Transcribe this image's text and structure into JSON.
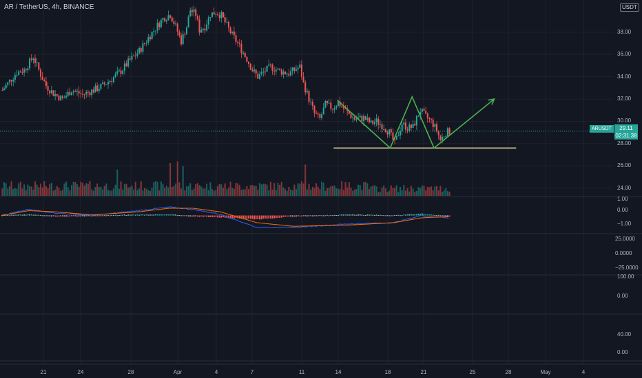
{
  "header": {
    "title": "AR / TetherUS, 4h, BINANCE"
  },
  "currency_label": "USDT",
  "ticker_label": "ARUSDT",
  "last_price": {
    "value": "29.11",
    "countdown": "02:31:38"
  },
  "colors": {
    "background": "#131722",
    "up": "#26a69a",
    "down": "#ef5350",
    "macd": "#2962ff",
    "signal": "#ff6d00",
    "pattern": "#4caf50",
    "support": "#f0e6a0"
  },
  "x_labels": [
    "21",
    "24",
    "28",
    "Apr",
    "4",
    "7",
    "11",
    "14",
    "18",
    "21",
    "25",
    "28",
    "May",
    "4"
  ],
  "price_axis_labels": [
    "38.00",
    "36.00",
    "34.00",
    "32.00",
    "30.00",
    "28.00",
    "26.00",
    "24.00"
  ],
  "macd_axis_labels": [
    "1.00",
    "0.00",
    "−1.00"
  ],
  "pane3_axis_labels": [
    "25.0000",
    "0.0000",
    "−25.0000"
  ],
  "pane4_axis_labels": [
    "100.00",
    "0.00"
  ],
  "pane5_axis_labels": [
    "40.00",
    "0.00"
  ],
  "chart_data": {
    "type": "candlestick",
    "title": "AR / TetherUS, 4h, BINANCE",
    "ylabel": "USDT",
    "ylim": [
      23.3,
      40.4
    ],
    "x_ticks": [
      "21",
      "24",
      "28",
      "Apr",
      "4",
      "7",
      "11",
      "14",
      "18",
      "21"
    ],
    "last_price": 29.11,
    "close_path_anchors": [
      [
        0,
        32.8
      ],
      [
        4,
        33.6
      ],
      [
        8,
        34.4
      ],
      [
        12,
        34.6
      ],
      [
        17,
        35.8
      ],
      [
        21,
        34.2
      ],
      [
        24,
        33.2
      ],
      [
        28,
        32.5
      ],
      [
        33,
        32.0
      ],
      [
        38,
        32.8
      ],
      [
        44,
        32.4
      ],
      [
        50,
        32.8
      ],
      [
        55,
        33.2
      ],
      [
        60,
        33.8
      ],
      [
        65,
        34.5
      ],
      [
        70,
        35.5
      ],
      [
        75,
        36.3
      ],
      [
        80,
        37.5
      ],
      [
        85,
        38.6
      ],
      [
        88,
        39.2
      ],
      [
        92,
        39.6
      ],
      [
        95,
        38.5
      ],
      [
        98,
        37.2
      ],
      [
        101,
        38.5
      ],
      [
        103,
        40.0
      ],
      [
        106,
        39.6
      ],
      [
        108,
        38.2
      ],
      [
        111,
        38.5
      ],
      [
        114,
        39.6
      ],
      [
        117,
        39.8
      ],
      [
        120,
        39.5
      ],
      [
        125,
        38.0
      ],
      [
        129,
        37.0
      ],
      [
        134,
        35.6
      ],
      [
        137,
        34.6
      ],
      [
        140,
        34.0
      ],
      [
        143,
        34.4
      ],
      [
        147,
        34.9
      ],
      [
        152,
        34.5
      ],
      [
        157,
        34.3
      ],
      [
        163,
        34.9
      ],
      [
        165,
        33.4
      ],
      [
        168,
        32.0
      ],
      [
        171,
        30.7
      ],
      [
        174,
        30.2
      ],
      [
        177,
        31.5
      ],
      [
        181,
        31.2
      ],
      [
        184,
        31.7
      ],
      [
        189,
        30.8
      ],
      [
        193,
        30.2
      ],
      [
        198,
        30.3
      ],
      [
        202,
        29.8
      ],
      [
        205,
        30.0
      ],
      [
        209,
        29.5
      ],
      [
        212,
        29.0
      ],
      [
        215,
        28.0
      ],
      [
        219,
        29.8
      ],
      [
        222,
        29.4
      ],
      [
        225,
        29.5
      ],
      [
        229,
        31.0
      ],
      [
        232,
        30.4
      ],
      [
        235,
        30.0
      ],
      [
        238,
        29.2
      ],
      [
        240,
        28.3
      ],
      [
        243,
        29.0
      ],
      [
        245,
        29.1
      ]
    ],
    "volume_axis": "overlay, bottom of price pane",
    "volume_peaks": [
      [
        63,
        3.2
      ],
      [
        92,
        4.0
      ],
      [
        96,
        4.2
      ],
      [
        99,
        3.6
      ],
      [
        166,
        3.8
      ]
    ],
    "macd": {
      "ylim": [
        -1.4,
        1.4
      ],
      "macd_anchors": [
        [
          0,
          0.0
        ],
        [
          15,
          0.5
        ],
        [
          30,
          0.2
        ],
        [
          50,
          0.0
        ],
        [
          75,
          0.4
        ],
        [
          92,
          0.7
        ],
        [
          105,
          0.5
        ],
        [
          120,
          0.1
        ],
        [
          140,
          -1.0
        ],
        [
          160,
          -1.0
        ],
        [
          190,
          -0.7
        ],
        [
          215,
          -0.6
        ],
        [
          230,
          0.0
        ],
        [
          245,
          -0.2
        ]
      ],
      "signal_anchors": [
        [
          0,
          0.0
        ],
        [
          15,
          0.4
        ],
        [
          30,
          0.3
        ],
        [
          50,
          0.05
        ],
        [
          75,
          0.3
        ],
        [
          92,
          0.6
        ],
        [
          105,
          0.6
        ],
        [
          120,
          0.3
        ],
        [
          140,
          -0.6
        ],
        [
          160,
          -0.9
        ],
        [
          190,
          -0.8
        ],
        [
          215,
          -0.6
        ],
        [
          230,
          -0.2
        ],
        [
          245,
          -0.1
        ]
      ]
    },
    "annotations": [
      {
        "type": "horizontal_support",
        "price": 27.6,
        "from_bar": 182,
        "to_bar": 282
      },
      {
        "type": "double_bottom_path",
        "points": [
          [
            184,
            31.9
          ],
          [
            213,
            27.6
          ],
          [
            225,
            32.2
          ],
          [
            237,
            27.6
          ],
          [
            270,
            32.0
          ]
        ],
        "arrow_at_end": true
      }
    ],
    "grid": true
  }
}
